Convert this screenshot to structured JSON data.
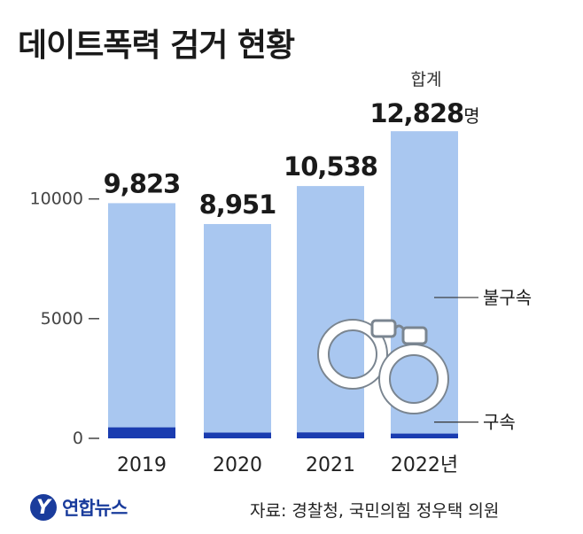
{
  "title": "데이트폭력 검거 현황",
  "source": "자료: 경찰청, 국민의힘 정우택 의원",
  "logo": {
    "mark": "Y",
    "text": "연합뉴스"
  },
  "total_caption": "합계",
  "total_unit": "명",
  "colors": {
    "non_detention": "#a9c7f0",
    "detention": "#1a3cb0",
    "axis": "#444444"
  },
  "chart_data": {
    "type": "bar",
    "stacked": true,
    "categories": [
      "2019",
      "2020",
      "2021",
      "2022년"
    ],
    "series": [
      {
        "name": "구속",
        "values": [
          460,
          240,
          250,
          200
        ]
      },
      {
        "name": "불구속",
        "values": [
          9363,
          8711,
          10288,
          12628
        ]
      }
    ],
    "totals": [
      9823,
      8951,
      10538,
      12828
    ],
    "total_labels": [
      "9,823",
      "8,951",
      "10,538",
      "12,828"
    ],
    "yticks": [
      0,
      5000,
      10000
    ],
    "ytick_labels": [
      "0",
      "5000",
      "10000"
    ],
    "ylim": [
      0,
      13500
    ],
    "legend_placement": "right"
  }
}
